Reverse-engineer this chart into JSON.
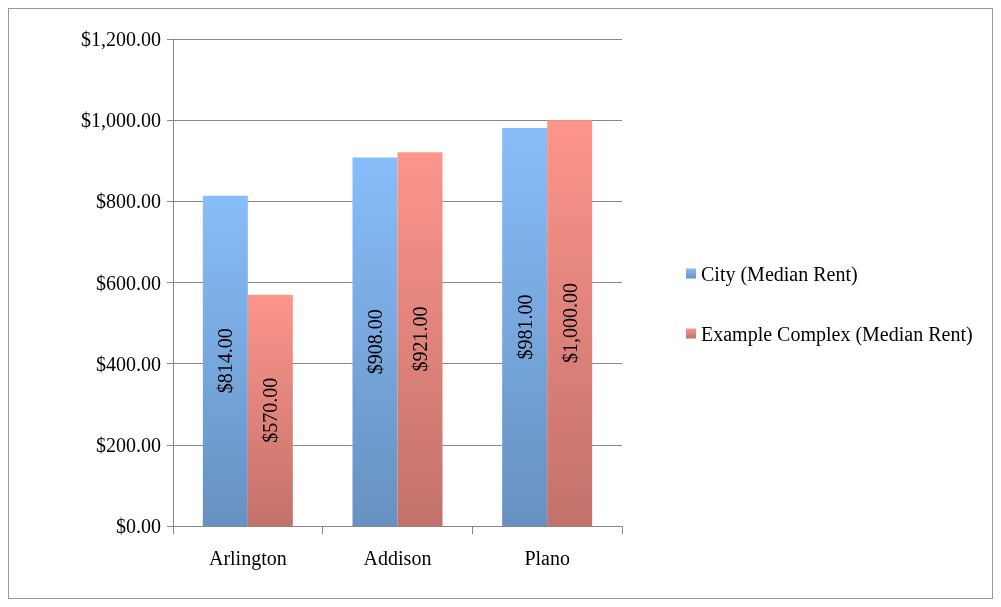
{
  "chart_data": {
    "type": "bar",
    "categories": [
      "Arlington",
      "Addison",
      "Plano"
    ],
    "series": [
      {
        "name": "City (Median Rent)",
        "color": "#7eb1ea",
        "values": [
          814,
          908,
          981
        ],
        "value_labels": [
          "$814.00",
          "$908.00",
          "$981.00"
        ]
      },
      {
        "name": "Example Complex (Median Rent)",
        "color": "#ec8b82",
        "values": [
          570,
          921,
          1000
        ],
        "value_labels": [
          "$570.00",
          "$921.00",
          "$1,000.00"
        ]
      }
    ],
    "ylim": [
      0,
      1200
    ],
    "yticks": [
      {
        "value": 0,
        "label": "$0.00"
      },
      {
        "value": 200,
        "label": "$200.00"
      },
      {
        "value": 400,
        "label": "$400.00"
      },
      {
        "value": 600,
        "label": "$600.00"
      },
      {
        "value": 800,
        "label": "$800.00"
      },
      {
        "value": 1000,
        "label": "$1,000.00"
      },
      {
        "value": 1200,
        "label": "$1,200.00"
      }
    ],
    "grid": "y",
    "legend": "right"
  }
}
